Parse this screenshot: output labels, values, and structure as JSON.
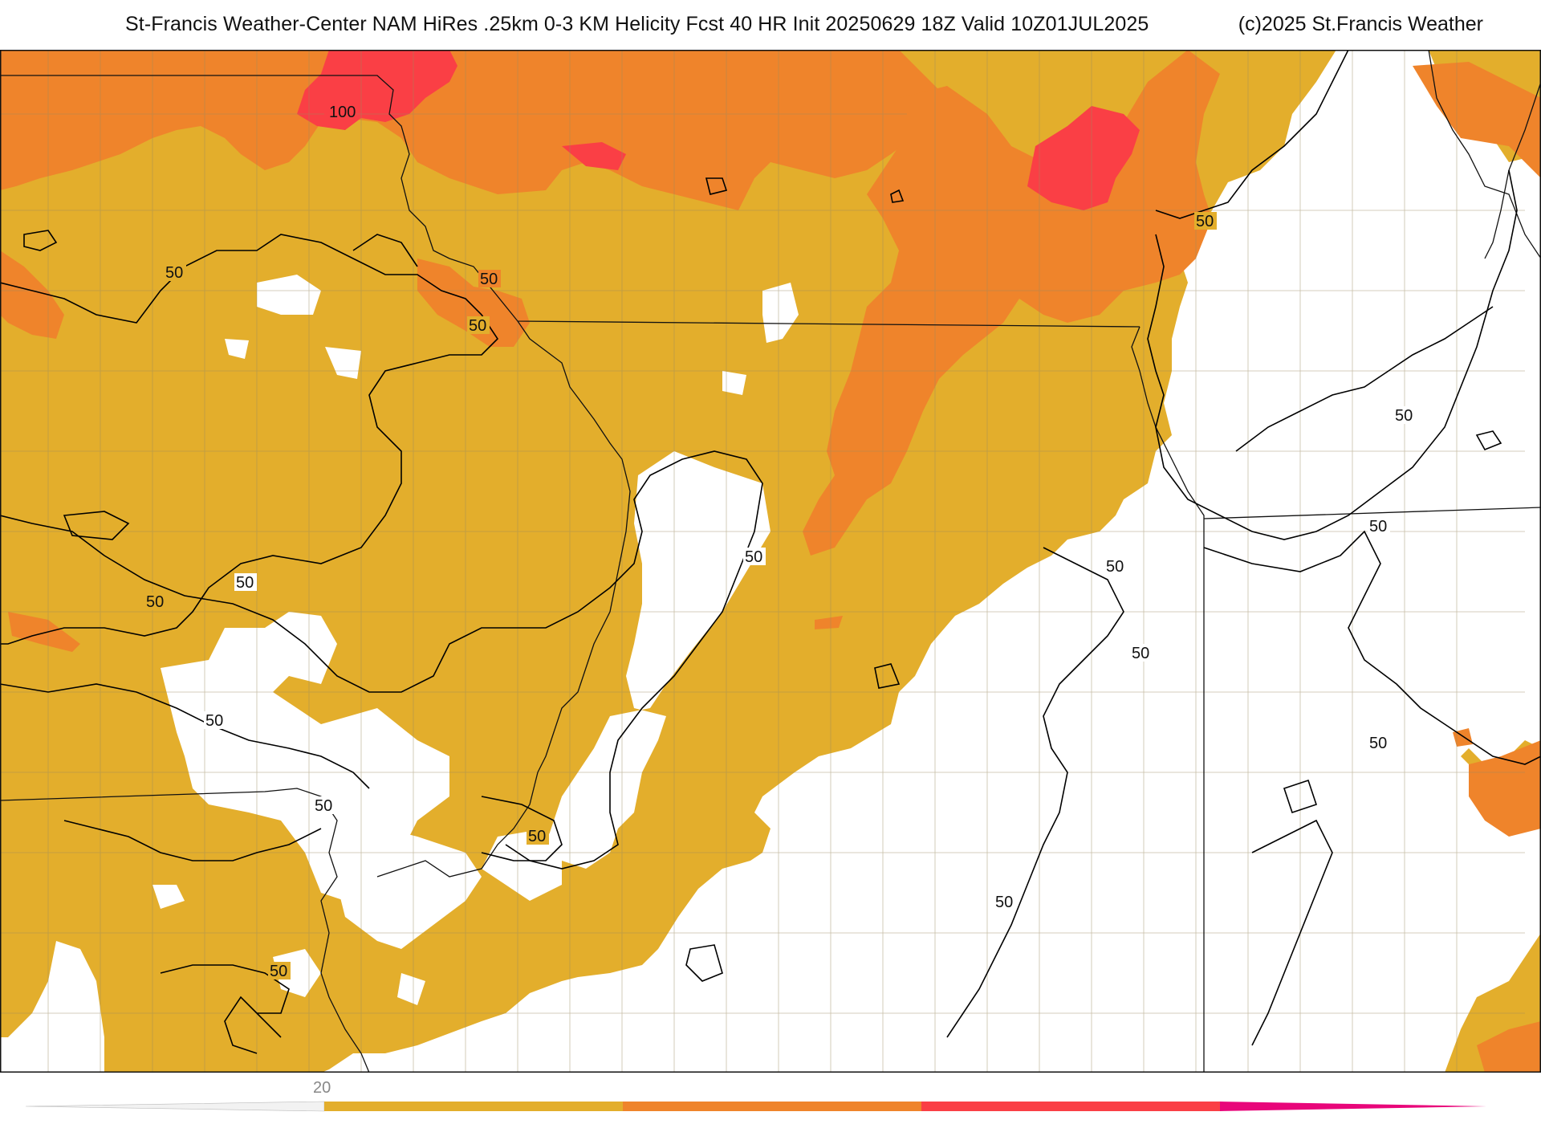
{
  "header": {
    "title": "St-Francis Weather-Center NAM HiRes .25km 0-3 KM Helicity Fcst 40 HR Init 20250629 18Z  Valid 10Z01JUL2025",
    "copyright": "(c)2025 St.Francis Weather"
  },
  "map": {
    "field": "0-3 KM Helicity",
    "contour_labels": [
      {
        "id": "c100",
        "text": "100"
      },
      {
        "id": "c50a",
        "text": "50"
      },
      {
        "id": "c50b",
        "text": "50"
      },
      {
        "id": "c50c",
        "text": "50"
      },
      {
        "id": "c50d",
        "text": "50"
      },
      {
        "id": "c50e",
        "text": "50"
      },
      {
        "id": "c50f",
        "text": "50"
      },
      {
        "id": "c50g",
        "text": "50"
      },
      {
        "id": "c50h",
        "text": "50"
      },
      {
        "id": "c50i",
        "text": "50"
      },
      {
        "id": "c50j",
        "text": "50"
      },
      {
        "id": "c50k",
        "text": "50"
      },
      {
        "id": "c50l",
        "text": "50"
      },
      {
        "id": "c50m",
        "text": "50"
      },
      {
        "id": "c50n",
        "text": "50"
      },
      {
        "id": "c50o",
        "text": "50"
      },
      {
        "id": "c50p",
        "text": "50"
      }
    ],
    "colors": {
      "band_20_50": "#e3ae2c",
      "band_50_100": "#ef842b",
      "band_100_150": "#fa3f45",
      "band_150_plus": "#e8067a",
      "contour": "#000000",
      "county_line": "#8a7a55",
      "county_line_white": "#cccccc"
    }
  },
  "colorbar": {
    "tick_label": "20",
    "segments": [
      "#e3ae2c",
      "#ef842b",
      "#fa3f45",
      "#e8067a"
    ]
  }
}
